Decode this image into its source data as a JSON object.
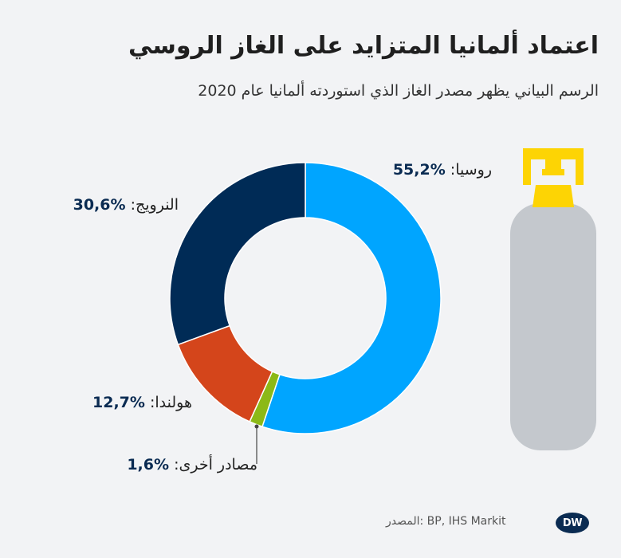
{
  "title": "اعتماد ألمانيا المتزايد على الغاز الروسي",
  "subtitle": "الرسم البياني يظهر مصدر الغاز الذي استوردته ألمانيا عام 2020",
  "chart_data": {
    "type": "pie",
    "donut": true,
    "slices": [
      {
        "label": "روسيا:",
        "value": 55.2,
        "display": "%55,2",
        "color": "#00a5ff"
      },
      {
        "label": "مصادر أخرى:",
        "value": 1.6,
        "display": "%1,6",
        "color": "#8cb917"
      },
      {
        "label": "هولندا:",
        "value": 12.7,
        "display": "%12,7",
        "color": "#d4451b"
      },
      {
        "label": "النرويج:",
        "value": 30.6,
        "display": "%30,6",
        "color": "#002b56"
      }
    ]
  },
  "source": "المصدر: BP, IHS Markit",
  "logo": "DW"
}
